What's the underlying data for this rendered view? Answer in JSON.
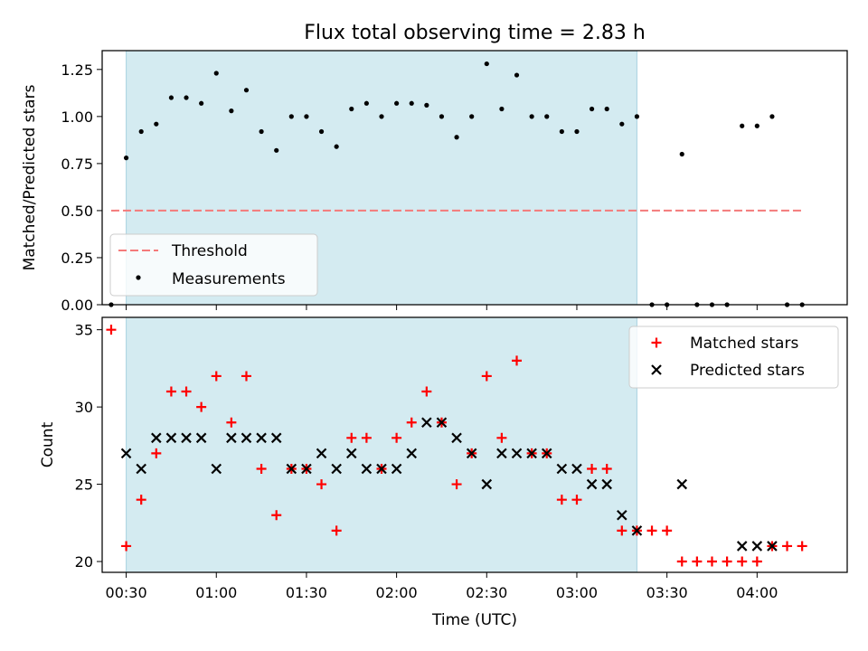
{
  "chart_data": [
    {
      "type": "scatter",
      "panel": "top",
      "title": "Flux total observing time = 2.83 h",
      "ylabel": "Matched/Predicted stars",
      "xlim": [
        "00:22",
        "04:30"
      ],
      "ylim": [
        0,
        1.35
      ],
      "yticks": [
        "0.00",
        "0.25",
        "0.50",
        "0.75",
        "1.00",
        "1.25"
      ],
      "grid": false,
      "legend_position": "lower-left",
      "shaded_span": {
        "start": "00:30",
        "end": "03:20",
        "color": "#d4ebf1"
      },
      "threshold": {
        "name": "Threshold",
        "y": 0.5,
        "x": [
          "00:25",
          "04:15"
        ],
        "color": "#f47a7a"
      },
      "series": [
        {
          "name": "Measurements",
          "color": "#000000",
          "points": [
            [
              "00:25",
              0.0
            ],
            [
              "00:30",
              0.78
            ],
            [
              "00:35",
              0.92
            ],
            [
              "00:40",
              0.96
            ],
            [
              "00:45",
              1.1
            ],
            [
              "00:50",
              1.1
            ],
            [
              "00:55",
              1.07
            ],
            [
              "01:00",
              1.23
            ],
            [
              "01:05",
              1.03
            ],
            [
              "01:10",
              1.14
            ],
            [
              "01:15",
              0.92
            ],
            [
              "01:20",
              0.82
            ],
            [
              "01:25",
              1.0
            ],
            [
              "01:30",
              1.0
            ],
            [
              "01:35",
              0.92
            ],
            [
              "01:40",
              0.84
            ],
            [
              "01:45",
              1.04
            ],
            [
              "01:50",
              1.07
            ],
            [
              "01:55",
              1.0
            ],
            [
              "02:00",
              1.07
            ],
            [
              "02:05",
              1.07
            ],
            [
              "02:10",
              1.06
            ],
            [
              "02:15",
              1.0
            ],
            [
              "02:20",
              0.89
            ],
            [
              "02:25",
              1.0
            ],
            [
              "02:30",
              1.28
            ],
            [
              "02:35",
              1.04
            ],
            [
              "02:40",
              1.22
            ],
            [
              "02:45",
              1.0
            ],
            [
              "02:50",
              1.0
            ],
            [
              "02:55",
              0.92
            ],
            [
              "03:00",
              0.92
            ],
            [
              "03:05",
              1.04
            ],
            [
              "03:10",
              1.04
            ],
            [
              "03:15",
              0.96
            ],
            [
              "03:20",
              1.0
            ],
            [
              "03:25",
              0.0
            ],
            [
              "03:30",
              0.0
            ],
            [
              "03:35",
              0.8
            ],
            [
              "03:40",
              0.0
            ],
            [
              "03:45",
              0.0
            ],
            [
              "03:50",
              0.0
            ],
            [
              "03:55",
              0.95
            ],
            [
              "04:00",
              0.95
            ],
            [
              "04:05",
              1.0
            ],
            [
              "04:10",
              0.0
            ],
            [
              "04:15",
              0.0
            ]
          ]
        }
      ]
    },
    {
      "type": "scatter",
      "panel": "bottom",
      "xlabel": "Time (UTC)",
      "ylabel": "Count",
      "xlim": [
        "00:22",
        "04:30"
      ],
      "ylim": [
        19.3,
        35.8
      ],
      "xticks": [
        "00:30",
        "01:00",
        "01:30",
        "02:00",
        "02:30",
        "03:00",
        "03:30",
        "04:00"
      ],
      "yticks": [
        "20",
        "25",
        "30",
        "35"
      ],
      "grid": false,
      "legend_position": "upper-right",
      "shaded_span": {
        "start": "00:30",
        "end": "03:20",
        "color": "#d4ebf1"
      },
      "series": [
        {
          "name": "Matched stars",
          "marker": "plus",
          "color": "#ff0000",
          "points": [
            [
              "00:25",
              35
            ],
            [
              "00:30",
              21
            ],
            [
              "00:35",
              24
            ],
            [
              "00:40",
              27
            ],
            [
              "00:45",
              31
            ],
            [
              "00:50",
              31
            ],
            [
              "00:55",
              30
            ],
            [
              "01:00",
              32
            ],
            [
              "01:05",
              29
            ],
            [
              "01:10",
              32
            ],
            [
              "01:15",
              26
            ],
            [
              "01:20",
              23
            ],
            [
              "01:25",
              26
            ],
            [
              "01:30",
              26
            ],
            [
              "01:35",
              25
            ],
            [
              "01:40",
              22
            ],
            [
              "01:45",
              28
            ],
            [
              "01:50",
              28
            ],
            [
              "01:55",
              26
            ],
            [
              "02:00",
              28
            ],
            [
              "02:05",
              29
            ],
            [
              "02:10",
              31
            ],
            [
              "02:15",
              29
            ],
            [
              "02:20",
              25
            ],
            [
              "02:25",
              27
            ],
            [
              "02:30",
              32
            ],
            [
              "02:35",
              28
            ],
            [
              "02:40",
              33
            ],
            [
              "02:45",
              27
            ],
            [
              "02:50",
              27
            ],
            [
              "02:55",
              24
            ],
            [
              "03:00",
              24
            ],
            [
              "03:05",
              26
            ],
            [
              "03:10",
              26
            ],
            [
              "03:15",
              22
            ],
            [
              "03:20",
              22
            ],
            [
              "03:25",
              22
            ],
            [
              "03:30",
              22
            ],
            [
              "03:35",
              20
            ],
            [
              "03:40",
              20
            ],
            [
              "03:45",
              20
            ],
            [
              "03:50",
              20
            ],
            [
              "03:55",
              20
            ],
            [
              "04:00",
              20
            ],
            [
              "04:05",
              21
            ],
            [
              "04:10",
              21
            ],
            [
              "04:15",
              21
            ]
          ]
        },
        {
          "name": "Predicted stars",
          "marker": "x",
          "color": "#000000",
          "points": [
            [
              "00:30",
              27
            ],
            [
              "00:35",
              26
            ],
            [
              "00:40",
              28
            ],
            [
              "00:45",
              28
            ],
            [
              "00:50",
              28
            ],
            [
              "00:55",
              28
            ],
            [
              "01:00",
              26
            ],
            [
              "01:05",
              28
            ],
            [
              "01:10",
              28
            ],
            [
              "01:15",
              28
            ],
            [
              "01:20",
              28
            ],
            [
              "01:25",
              26
            ],
            [
              "01:30",
              26
            ],
            [
              "01:35",
              27
            ],
            [
              "01:40",
              26
            ],
            [
              "01:45",
              27
            ],
            [
              "01:50",
              26
            ],
            [
              "01:55",
              26
            ],
            [
              "02:00",
              26
            ],
            [
              "02:05",
              27
            ],
            [
              "02:10",
              29
            ],
            [
              "02:15",
              29
            ],
            [
              "02:20",
              28
            ],
            [
              "02:25",
              27
            ],
            [
              "02:30",
              25
            ],
            [
              "02:35",
              27
            ],
            [
              "02:40",
              27
            ],
            [
              "02:45",
              27
            ],
            [
              "02:50",
              27
            ],
            [
              "02:55",
              26
            ],
            [
              "03:00",
              26
            ],
            [
              "03:05",
              25
            ],
            [
              "03:10",
              25
            ],
            [
              "03:15",
              23
            ],
            [
              "03:20",
              22
            ],
            [
              "03:35",
              25
            ],
            [
              "03:55",
              21
            ],
            [
              "04:00",
              21
            ],
            [
              "04:05",
              21
            ]
          ]
        }
      ]
    }
  ]
}
